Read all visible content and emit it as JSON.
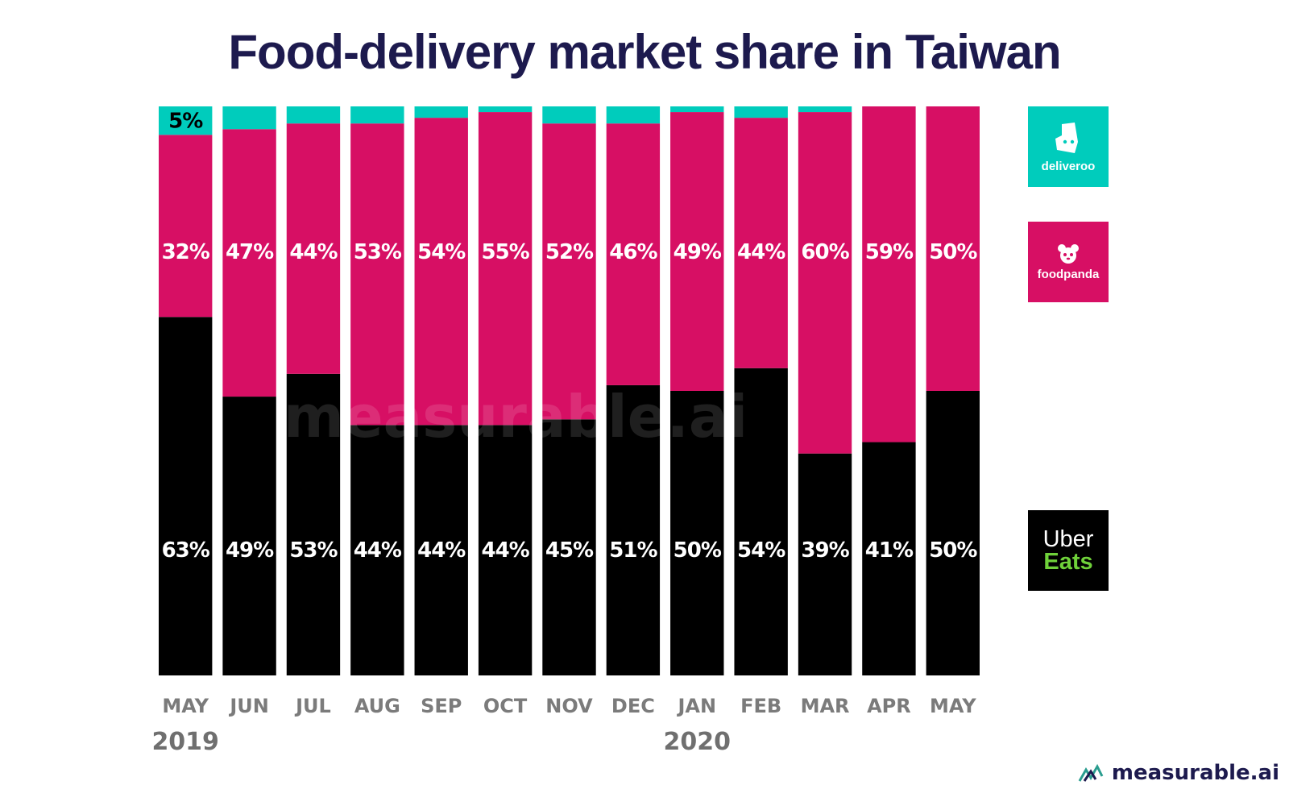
{
  "title": "Food-delivery market share in Taiwan",
  "watermark": "measurable.ai",
  "brand": {
    "name": "measurable.ai"
  },
  "colors": {
    "deliveroo": "#00ccbc",
    "foodpanda": "#d70f64",
    "ubereats": "#000000",
    "title": "#1d1a4e"
  },
  "legend": {
    "deliveroo": {
      "label": "deliveroo",
      "icon": "deliveroo-kangaroo-icon"
    },
    "foodpanda": {
      "label": "foodpanda",
      "icon": "panda-face-icon"
    },
    "ubereats": {
      "line1": "Uber",
      "line2": "Eats"
    }
  },
  "chart_data": {
    "type": "bar",
    "stacked": true,
    "categories": [
      "MAY",
      "JUN",
      "JUL",
      "AUG",
      "SEP",
      "OCT",
      "NOV",
      "DEC",
      "JAN",
      "FEB",
      "MAR",
      "APR",
      "MAY"
    ],
    "year_labels": [
      {
        "label": "2019",
        "category_index": 0
      },
      {
        "label": "2020",
        "category_index": 8
      }
    ],
    "ylim": [
      0,
      100
    ],
    "series": [
      {
        "name": "Uber Eats",
        "color": "#000000",
        "values": [
          63,
          49,
          53,
          44,
          44,
          44,
          45,
          51,
          50,
          54,
          39,
          41,
          50
        ]
      },
      {
        "name": "foodpanda",
        "color": "#d70f64",
        "values": [
          32,
          47,
          44,
          53,
          54,
          55,
          52,
          46,
          49,
          44,
          60,
          59,
          50
        ]
      },
      {
        "name": "deliveroo",
        "color": "#00ccbc",
        "values": [
          5,
          4,
          3,
          3,
          2,
          1,
          3,
          3,
          1,
          2,
          1,
          0,
          0
        ]
      }
    ],
    "data_labels": {
      "Uber Eats": [
        "63%",
        "49%",
        "53%",
        "44%",
        "44%",
        "44%",
        "45%",
        "51%",
        "50%",
        "54%",
        "39%",
        "41%",
        "50%"
      ],
      "foodpanda": [
        "32%",
        "47%",
        "44%",
        "53%",
        "54%",
        "55%",
        "52%",
        "46%",
        "49%",
        "44%",
        "60%",
        "59%",
        "50%"
      ],
      "deliveroo": [
        "5%",
        "",
        "",
        "",
        "",
        "",
        "",
        "",
        "",
        "",
        "",
        "",
        ""
      ]
    },
    "grid": false,
    "legend_position": "right"
  }
}
